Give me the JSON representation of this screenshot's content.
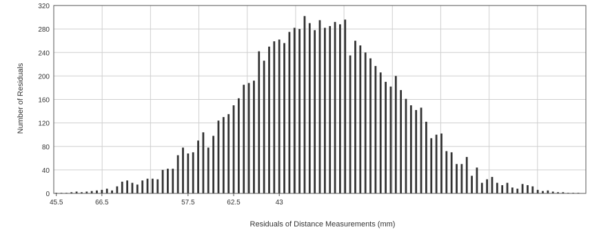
{
  "chart_data": {
    "type": "bar",
    "title": "",
    "xlabel": "Residuals of Distance Measurements (mm)",
    "ylabel": "Number of Residuals",
    "ylim": [
      0,
      320
    ],
    "yticks": [
      0,
      40,
      80,
      120,
      160,
      200,
      240,
      280,
      320
    ],
    "xtick_labels": [
      "45.5",
      "66.5",
      "57.5",
      "62.5",
      "43"
    ],
    "xtick_bar_index": [
      0,
      9,
      26,
      35,
      44
    ],
    "grid": true,
    "bar_color": "#333333",
    "grid_color": "#cfcfcf",
    "values": [
      1,
      1,
      1,
      2,
      3,
      2,
      3,
      4,
      5,
      6,
      8,
      5,
      12,
      20,
      22,
      18,
      15,
      22,
      25,
      25,
      24,
      40,
      42,
      42,
      65,
      78,
      68,
      70,
      90,
      104,
      78,
      98,
      124,
      130,
      135,
      150,
      162,
      185,
      188,
      192,
      242,
      226,
      250,
      259,
      262,
      256,
      275,
      282,
      280,
      302,
      290,
      278,
      295,
      282,
      285,
      292,
      288,
      296,
      235,
      260,
      252,
      240,
      230,
      217,
      206,
      190,
      182,
      200,
      176,
      161,
      150,
      142,
      146,
      122,
      94,
      100,
      102,
      72,
      70,
      50,
      50,
      62,
      30,
      44,
      18,
      24,
      28,
      18,
      14,
      18,
      10,
      8,
      16,
      14,
      12,
      6,
      4,
      5,
      3,
      2,
      2,
      1,
      1,
      1,
      0
    ]
  }
}
